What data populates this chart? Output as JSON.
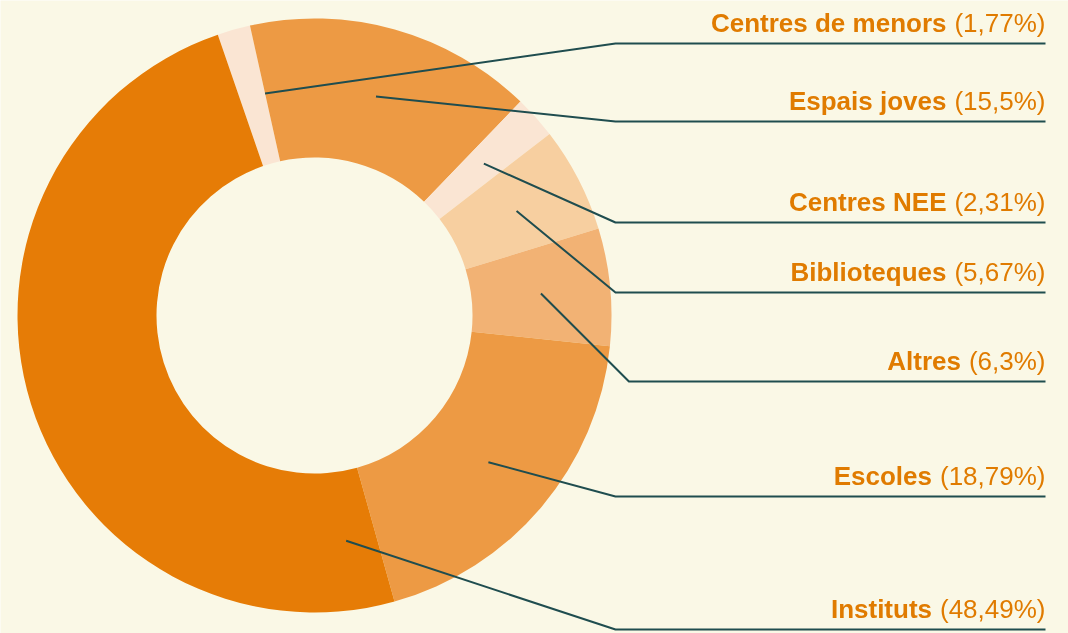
{
  "chart_data": {
    "type": "donut",
    "categories": [
      "Centres de menors",
      "Espais joves",
      "Centres NEE",
      "Biblioteques",
      "Altres",
      "Escoles",
      "Instituts"
    ],
    "values": [
      1.77,
      15.5,
      2.31,
      5.67,
      6.3,
      18.79,
      48.49
    ],
    "colors": [
      "#fae5d3",
      "#ed9a44",
      "#fae5d3",
      "#f7cfa0",
      "#f2b274",
      "#ed9a44",
      "#e67c06"
    ],
    "value_labels": [
      "(1,77%)",
      "(15,5%)",
      "(2,31%)",
      "(5,67%)",
      "(6,3%)",
      "(18,79%)",
      "(48,49%)"
    ]
  }
}
